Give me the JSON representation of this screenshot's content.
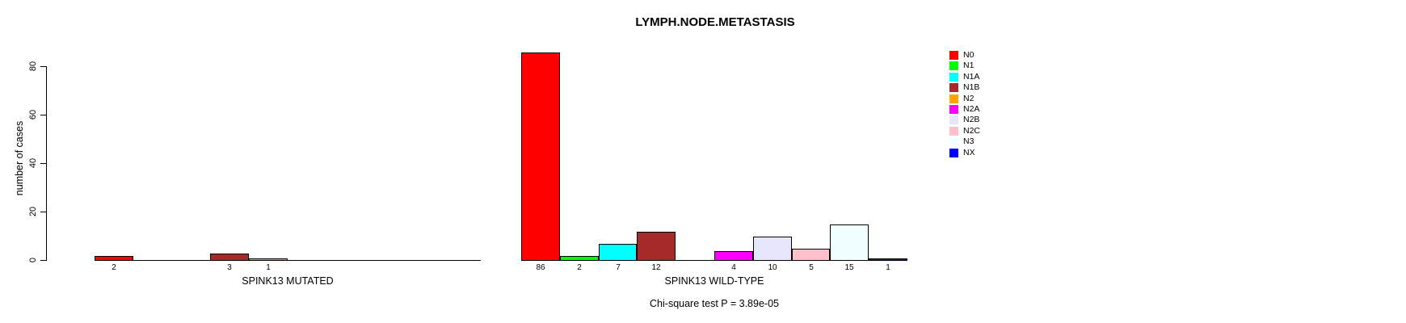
{
  "chart_data": {
    "type": "bar",
    "title": "LYMPH.NODE.METASTASIS",
    "ylabel": "number of cases",
    "ylim": [
      0,
      80
    ],
    "yticks": [
      0,
      20,
      40,
      60,
      80
    ],
    "grid": false,
    "legend_position": "right",
    "categories": [
      "N0",
      "N1",
      "N1A",
      "N1B",
      "N2",
      "N2A",
      "N2B",
      "N2C",
      "N3",
      "NX"
    ],
    "series_colors": [
      "#FF0000",
      "#00FF00",
      "#00FFFF",
      "#A52A2A",
      "#FFA500",
      "#FF00FF",
      "#E6E6FA",
      "#FFC0CB",
      "#F0FFFF",
      "#0000FF"
    ],
    "groups": [
      {
        "label": "SPINK13 MUTATED",
        "values": [
          2,
          0,
          0,
          3,
          1,
          0,
          0,
          0,
          0,
          0
        ]
      },
      {
        "label": "SPINK13 WILD-TYPE",
        "values": [
          86,
          2,
          7,
          12,
          0,
          4,
          10,
          5,
          15,
          1
        ]
      }
    ],
    "bar_value_labels": "shown under each nonzero bar",
    "annotation": "Chi-square test P = 3.89e-05",
    "axis_color": "#000000",
    "background_color": "#FFFFFF"
  }
}
